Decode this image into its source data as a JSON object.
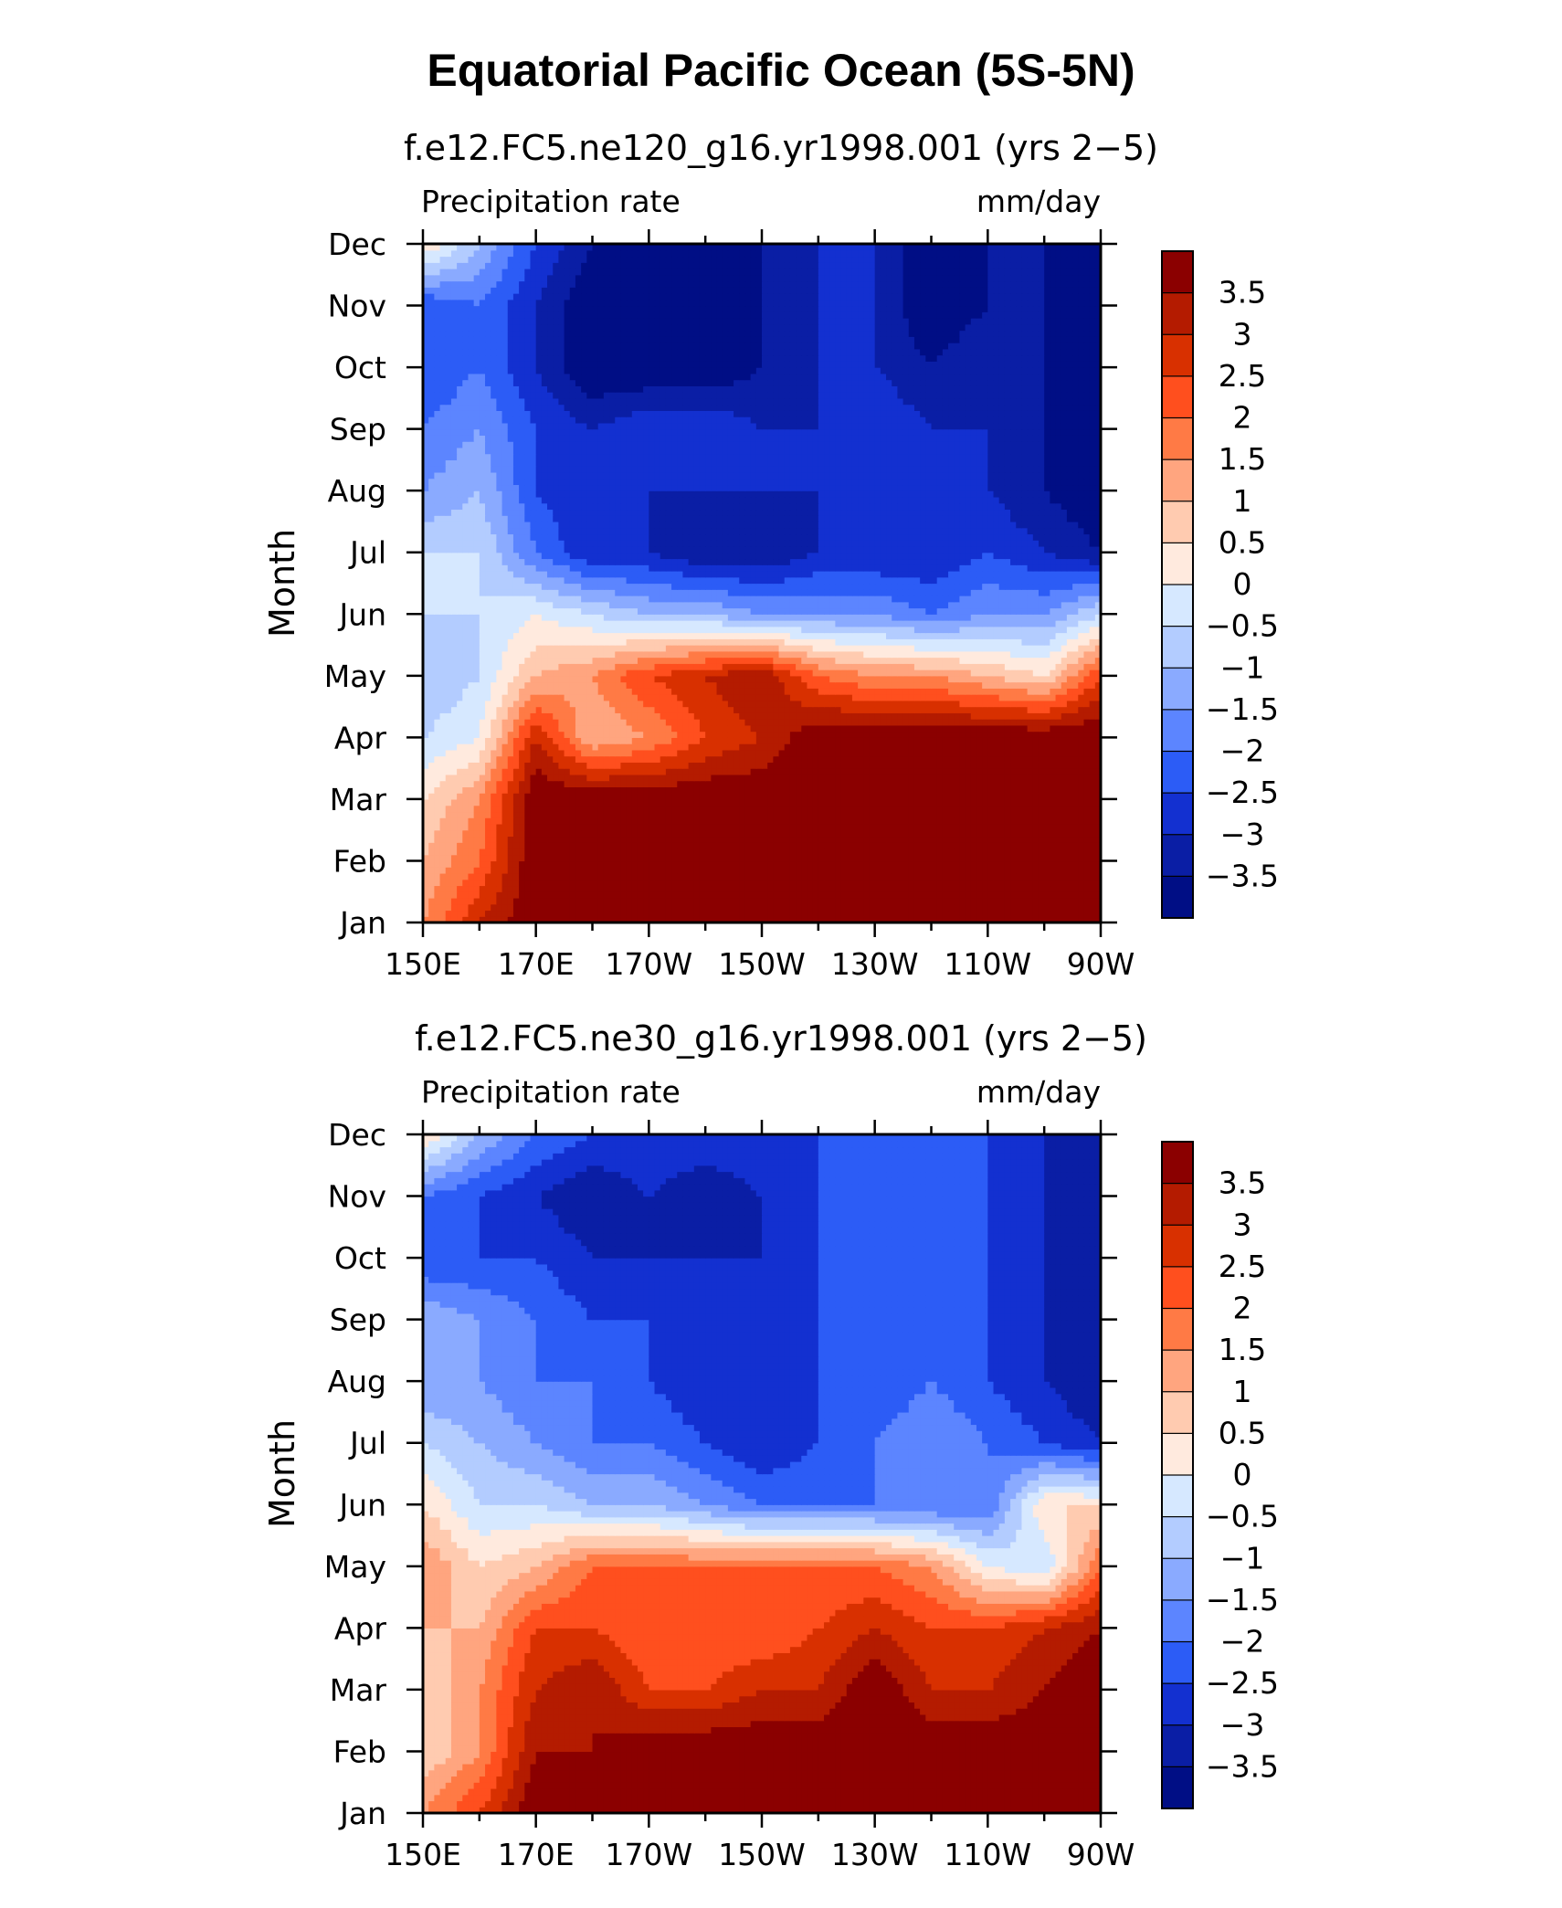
{
  "title": "Equatorial Pacific Ocean (5S-5N)",
  "chart_data": [
    {
      "type": "heatmap",
      "subtitle": "f.e12.FC5.ne120_g16.yr1998.001 (yrs 2−5)",
      "left_label": "Precipitation rate",
      "right_label": "mm/day",
      "xlabel": "",
      "ylabel": "Month",
      "x_tick_labels": [
        "150E",
        "170E",
        "170W",
        "150W",
        "130W",
        "110W",
        "90W"
      ],
      "y_tick_labels": [
        "Jan",
        "Feb",
        "Mar",
        "Apr",
        "May",
        "Jun",
        "Jul",
        "Aug",
        "Sep",
        "Oct",
        "Nov",
        "Dec"
      ],
      "xlim": [
        150,
        270
      ],
      "ylim": [
        1,
        12
      ],
      "x": [
        150,
        160,
        170,
        180,
        190,
        200,
        210,
        220,
        230,
        240,
        250,
        260,
        270
      ],
      "y": [
        1,
        2,
        3,
        4,
        5,
        6,
        7,
        8,
        9,
        10,
        11,
        12
      ],
      "values": [
        [
          1.5,
          3.0,
          4.0,
          4.0,
          4.0,
          4.0,
          4.0,
          4.0,
          4.0,
          4.0,
          4.0,
          4.0,
          4.0
        ],
        [
          1.0,
          2.0,
          4.0,
          4.0,
          4.0,
          4.0,
          4.0,
          4.0,
          4.0,
          4.0,
          4.0,
          4.0,
          4.0
        ],
        [
          0.5,
          1.5,
          4.0,
          4.0,
          4.0,
          4.0,
          4.0,
          4.0,
          4.0,
          4.0,
          4.0,
          4.0,
          4.0
        ],
        [
          -0.5,
          0.0,
          3.0,
          1.0,
          1.5,
          2.5,
          3.0,
          4.0,
          4.0,
          4.0,
          4.0,
          4.0,
          4.0
        ],
        [
          -1.0,
          -0.5,
          1.0,
          1.5,
          2.5,
          3.0,
          3.5,
          2.0,
          1.5,
          1.5,
          1.0,
          0.5,
          2.5
        ],
        [
          -0.5,
          -0.5,
          0.0,
          -0.5,
          -1.0,
          -1.0,
          -1.5,
          -1.5,
          -1.5,
          -2.0,
          -1.5,
          -1.5,
          -0.5
        ],
        [
          -0.5,
          -0.5,
          -2.0,
          -3.0,
          -3.0,
          -3.5,
          -3.5,
          -3.0,
          -3.0,
          -3.0,
          -2.5,
          -3.0,
          -3.5
        ],
        [
          -1.5,
          -1.0,
          -2.5,
          -3.0,
          -3.0,
          -3.0,
          -3.0,
          -3.0,
          -2.5,
          -3.0,
          -3.0,
          -3.5,
          -4.0
        ],
        [
          -2.0,
          -1.5,
          -2.5,
          -3.0,
          -2.5,
          -2.5,
          -3.0,
          -3.0,
          -2.5,
          -3.0,
          -3.0,
          -3.5,
          -4.0
        ],
        [
          -2.5,
          -2.0,
          -3.0,
          -4.0,
          -4.0,
          -4.0,
          -3.5,
          -3.0,
          -3.0,
          -3.5,
          -3.0,
          -3.5,
          -4.0
        ],
        [
          -2.5,
          -2.0,
          -3.0,
          -4.0,
          -4.0,
          -4.0,
          -3.5,
          -3.0,
          -3.0,
          -4.0,
          -3.5,
          -3.5,
          -4.0
        ],
        [
          0.5,
          -1.0,
          -2.5,
          -3.5,
          -3.5,
          -3.5,
          -3.5,
          -3.0,
          -3.0,
          -4.0,
          -3.5,
          -3.5,
          -4.0
        ]
      ],
      "colorbar": {
        "labels": [
          "3.5",
          "3",
          "2.5",
          "2",
          "1.5",
          "1",
          "0.5",
          "0",
          "−0.5",
          "−1",
          "−1.5",
          "−2",
          "−2.5",
          "−3",
          "−3.5"
        ],
        "levels": [
          3.5,
          3,
          2.5,
          2,
          1.5,
          1,
          0.5,
          0,
          -0.5,
          -1,
          -1.5,
          -2,
          -2.5,
          -3,
          -3.5
        ],
        "colors": [
          "#8b0000",
          "#b41b00",
          "#d83000",
          "#ff4f1e",
          "#ff7a45",
          "#ffa57f",
          "#ffcbb0",
          "#ffeade",
          "#d6e8ff",
          "#b3ccff",
          "#8aaaff",
          "#5c85ff",
          "#2c5cf6",
          "#1330d0",
          "#0a1ea5",
          "#000e85"
        ]
      }
    },
    {
      "type": "heatmap",
      "subtitle": "f.e12.FC5.ne30_g16.yr1998.001 (yrs 2−5)",
      "left_label": "Precipitation rate",
      "right_label": "mm/day",
      "xlabel": "",
      "ylabel": "Month",
      "x_tick_labels": [
        "150E",
        "170E",
        "170W",
        "150W",
        "130W",
        "110W",
        "90W"
      ],
      "y_tick_labels": [
        "Jan",
        "Feb",
        "Mar",
        "Apr",
        "May",
        "Jun",
        "Jul",
        "Aug",
        "Sep",
        "Oct",
        "Nov",
        "Dec"
      ],
      "xlim": [
        150,
        270
      ],
      "ylim": [
        1,
        12
      ],
      "x": [
        150,
        160,
        170,
        180,
        190,
        200,
        210,
        220,
        230,
        240,
        250,
        260,
        270
      ],
      "y": [
        1,
        2,
        3,
        4,
        5,
        6,
        7,
        8,
        9,
        10,
        11,
        12
      ],
      "values": [
        [
          1.5,
          2.5,
          4.0,
          4.0,
          4.0,
          4.0,
          4.0,
          4.0,
          4.0,
          4.0,
          4.0,
          4.0,
          4.0
        ],
        [
          0.5,
          1.5,
          3.5,
          3.5,
          4.0,
          4.0,
          4.0,
          4.0,
          4.0,
          4.0,
          4.0,
          4.0,
          4.0
        ],
        [
          0.5,
          1.5,
          3.0,
          3.5,
          2.5,
          2.5,
          3.0,
          3.0,
          4.0,
          3.0,
          3.0,
          3.5,
          4.0
        ],
        [
          1.0,
          1.0,
          2.5,
          2.5,
          2.0,
          2.0,
          2.0,
          2.5,
          3.0,
          2.5,
          2.5,
          3.0,
          3.5
        ],
        [
          1.5,
          0.5,
          1.0,
          2.0,
          2.0,
          2.0,
          2.0,
          2.0,
          2.0,
          1.5,
          0.0,
          -0.5,
          2.0
        ],
        [
          0.5,
          -0.5,
          -0.5,
          -1.0,
          -1.0,
          -1.5,
          -2.0,
          -2.0,
          -2.0,
          -2.0,
          -2.0,
          0.5,
          0.5
        ],
        [
          -0.5,
          -1.0,
          -1.5,
          -2.0,
          -2.0,
          -2.5,
          -3.0,
          -2.5,
          -2.0,
          -1.5,
          -2.0,
          -2.5,
          -3.0
        ],
        [
          -1.5,
          -1.5,
          -2.0,
          -2.0,
          -2.5,
          -3.0,
          -3.0,
          -2.5,
          -2.5,
          -2.0,
          -2.5,
          -3.0,
          -3.5
        ],
        [
          -1.0,
          -1.5,
          -2.0,
          -2.5,
          -2.5,
          -3.0,
          -3.0,
          -2.5,
          -2.5,
          -2.5,
          -2.5,
          -3.0,
          -3.5
        ],
        [
          -2.5,
          -2.5,
          -2.5,
          -3.0,
          -3.0,
          -3.0,
          -3.0,
          -2.5,
          -2.5,
          -2.5,
          -2.5,
          -3.0,
          -3.5
        ],
        [
          -2.0,
          -2.5,
          -3.0,
          -3.5,
          -3.0,
          -3.5,
          -3.0,
          -2.5,
          -2.5,
          -2.5,
          -2.5,
          -3.0,
          -3.5
        ],
        [
          0.5,
          -1.0,
          -2.0,
          -2.5,
          -2.5,
          -2.5,
          -2.5,
          -2.5,
          -2.0,
          -2.0,
          -2.5,
          -3.0,
          -3.5
        ]
      ],
      "colorbar": {
        "labels": [
          "3.5",
          "3",
          "2.5",
          "2",
          "1.5",
          "1",
          "0.5",
          "0",
          "−0.5",
          "−1",
          "−1.5",
          "−2",
          "−2.5",
          "−3",
          "−3.5"
        ],
        "levels": [
          3.5,
          3,
          2.5,
          2,
          1.5,
          1,
          0.5,
          0,
          -0.5,
          -1,
          -1.5,
          -2,
          -2.5,
          -3,
          -3.5
        ],
        "colors": [
          "#8b0000",
          "#b41b00",
          "#d83000",
          "#ff4f1e",
          "#ff7a45",
          "#ffa57f",
          "#ffcbb0",
          "#ffeade",
          "#d6e8ff",
          "#b3ccff",
          "#8aaaff",
          "#5c85ff",
          "#2c5cf6",
          "#1330d0",
          "#0a1ea5",
          "#000e85"
        ]
      }
    }
  ]
}
